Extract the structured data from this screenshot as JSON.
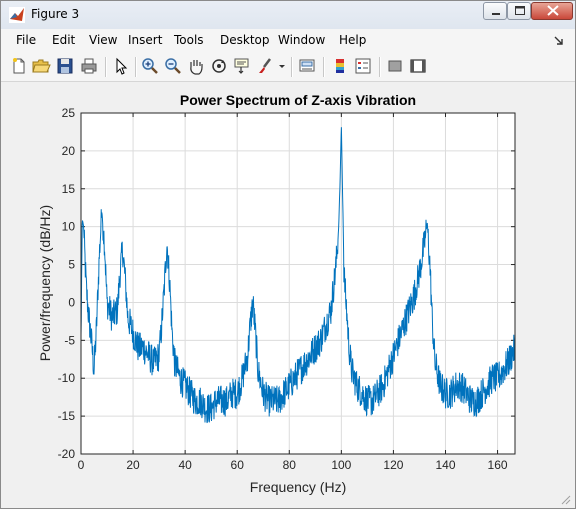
{
  "window": {
    "title": "Figure 3",
    "minimize_label": "minimize",
    "maximize_label": "maximize",
    "close_label": "close"
  },
  "menu": {
    "items": [
      "File",
      "Edit",
      "View",
      "Insert",
      "Tools",
      "Desktop",
      "Window",
      "Help"
    ]
  },
  "toolbar": {
    "icons": [
      "new-figure-icon",
      "open-file-icon",
      "save-icon",
      "print-icon",
      "pointer-icon",
      "zoom-in-icon",
      "zoom-out-icon",
      "pan-icon",
      "rotate-3d-icon",
      "data-cursor-icon",
      "brush-icon",
      "dropdown-arrow-icon",
      "link-plot-icon",
      "colorbar-icon",
      "legend-icon",
      "hide-plot-tools-icon",
      "show-plot-tools-icon"
    ]
  },
  "colors": {
    "series": "#0072bd",
    "axes_bg": "#ffffff",
    "figure_bg": "#f0f0f0",
    "grid": "#dcdcdc"
  },
  "chart_data": {
    "type": "line",
    "title": "Power Spectrum of Z-axis Vibration",
    "xlabel": "Frequency (Hz)",
    "ylabel": "Power/frequency (dB/Hz)",
    "xlim": [
      0,
      166.7
    ],
    "ylim": [
      -20,
      25
    ],
    "xticks": [
      0,
      20,
      40,
      60,
      80,
      100,
      120,
      140,
      160
    ],
    "yticks": [
      -20,
      -15,
      -10,
      -5,
      0,
      5,
      10,
      15,
      20,
      25
    ],
    "grid": true,
    "legend": "none",
    "series": [
      {
        "color": "#0072bd",
        "x": [
          0,
          0.5,
          1,
          2,
          3,
          4,
          5,
          6,
          7,
          8,
          9,
          10,
          12,
          14,
          15,
          16,
          17,
          18,
          20,
          22,
          24,
          26,
          28,
          30,
          31,
          32,
          33,
          34,
          35,
          36,
          38,
          40,
          42,
          44,
          46,
          48,
          50,
          52,
          54,
          56,
          58,
          60,
          62,
          64,
          65,
          66,
          67,
          68,
          70,
          72,
          74,
          76,
          78,
          80,
          82,
          84,
          86,
          88,
          90,
          92,
          94,
          96,
          97,
          98,
          99,
          99.5,
          100,
          100.5,
          101,
          102,
          103,
          104,
          106,
          108,
          110,
          112,
          114,
          116,
          118,
          120,
          122,
          124,
          126,
          128,
          130,
          131,
          132,
          133,
          134,
          135,
          136,
          138,
          140,
          142,
          144,
          146,
          148,
          150,
          152,
          154,
          156,
          158,
          160,
          162,
          164,
          166.7
        ],
        "y": [
          -5,
          11,
          10,
          2,
          -2,
          -5,
          -9,
          -3,
          6,
          12,
          8,
          0,
          -2,
          -1,
          4,
          7,
          3,
          -2,
          -4,
          -6,
          -6,
          -7,
          -8,
          -7,
          -3,
          2,
          8,
          3,
          -4,
          -8,
          -10,
          -11,
          -12,
          -13,
          -13,
          -14,
          -14,
          -13,
          -13,
          -13,
          -12,
          -12,
          -10,
          -7,
          -3,
          0,
          -4,
          -9,
          -12,
          -13,
          -13,
          -13,
          -12,
          -11,
          -10,
          -9,
          -8,
          -7,
          -6,
          -5,
          -3,
          -1,
          2,
          5,
          10,
          16,
          23.5,
          14,
          4,
          -1,
          -6,
          -9,
          -11,
          -12,
          -13,
          -13,
          -12,
          -11,
          -9,
          -7,
          -5,
          -3,
          -1,
          1,
          4,
          6,
          8,
          10.5,
          5,
          -3,
          -8,
          -11,
          -12,
          -12,
          -11,
          -11,
          -12,
          -13,
          -13,
          -12,
          -11,
          -10,
          -10,
          -9,
          -8,
          -6
        ]
      }
    ]
  }
}
